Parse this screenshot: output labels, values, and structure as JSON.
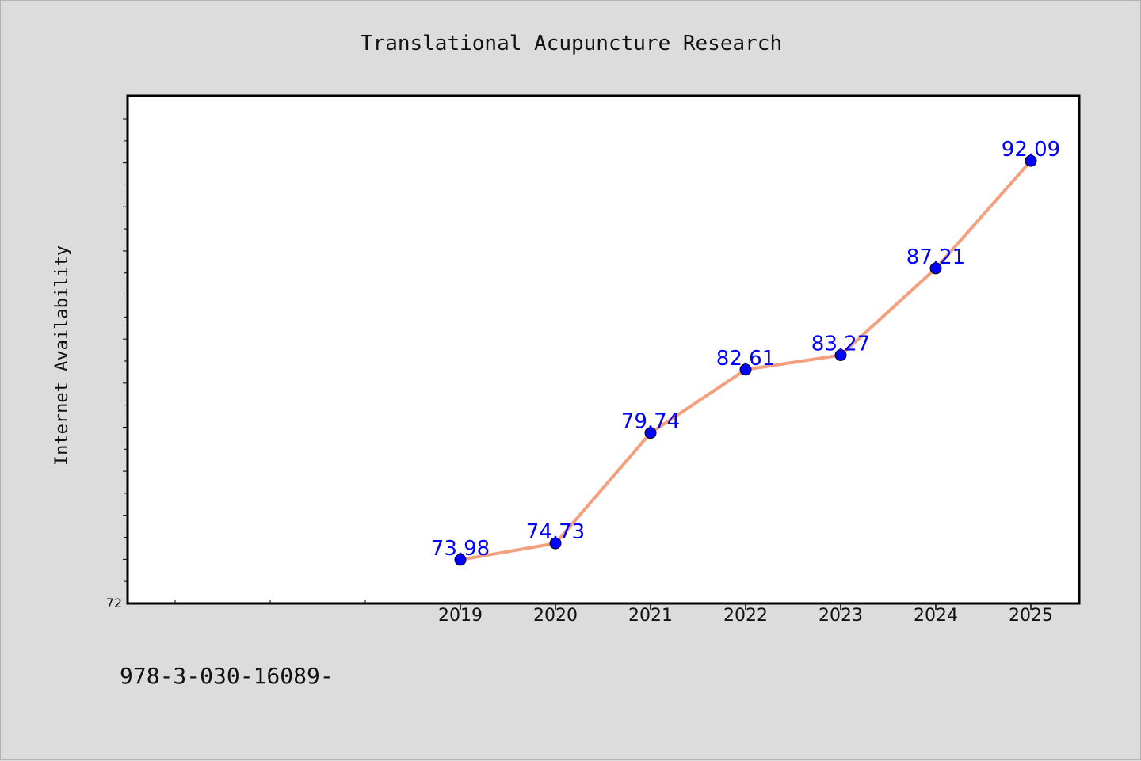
{
  "chart_data": {
    "type": "line",
    "title": "Translational Acupuncture Research",
    "xlabel": "",
    "ylabel": "Internet Availability",
    "categories": [
      "2019",
      "2020",
      "2021",
      "2022",
      "2023",
      "2024",
      "2025"
    ],
    "values": [
      73.98,
      74.73,
      79.74,
      82.61,
      83.27,
      87.21,
      92.09
    ],
    "data_labels": [
      "73.98",
      "74.73",
      "79.74",
      "82.61",
      "83.27",
      "87.21",
      "92.09"
    ],
    "y_tick_label": "72",
    "ylim": [
      72,
      94
    ],
    "grid": false,
    "colors": {
      "line": "#f4a07f",
      "marker": "#0000ff",
      "label": "#0000ff",
      "background": "#dcdcdc",
      "plot": "#ffffff"
    }
  },
  "footer_text": "978-3-030-16089-"
}
